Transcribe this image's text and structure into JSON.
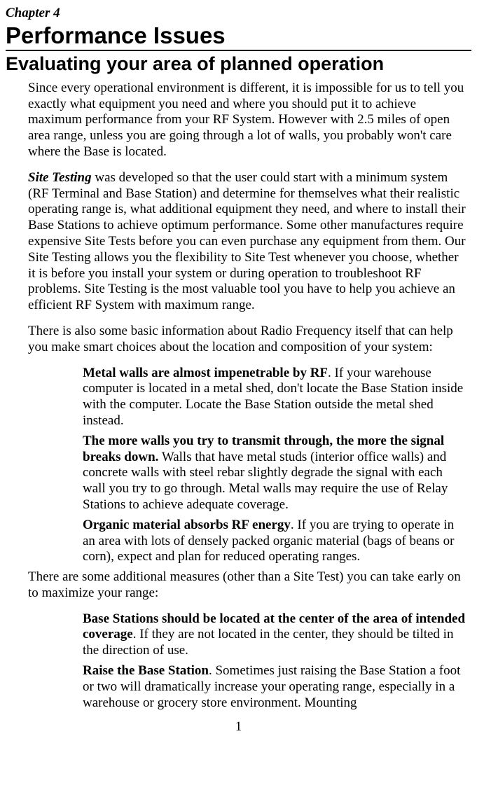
{
  "chapter": {
    "label": "Chapter 4",
    "title": "Performance Issues"
  },
  "section": {
    "title": "Evaluating your area of planned operation"
  },
  "paras": {
    "p1": "Since every operational environment is different, it is impossible for us to tell you exactly what equipment you need and where you should put it to achieve maximum performance from your RF System. However with 2.5 miles of open area range, unless you are going through a lot of walls, you probably won't care where the Base is located.",
    "p2_lead": "Site Testing",
    "p2_rest": " was developed so that the user could start with a minimum system (RF Terminal and Base Station) and determine for themselves what their realistic operating range is, what additional equipment they need, and where to install their Base Stations to achieve optimum performance. Some other manufactures require expensive Site Tests before you can even purchase any equipment from them. Our Site Testing allows you the flexibility to Site Test whenever you choose, whether it is before you install your system or during operation to troubleshoot RF problems. Site Testing is the most valuable tool you have to help you achieve an efficient RF System with maximum range.",
    "p3": "There is also some basic information about Radio Frequency itself that can help you make smart choices about the location and composition of your system:",
    "tip1_lead": "Metal walls are almost impenetrable by RF",
    "tip1_rest": ". If your warehouse computer is located in a metal shed, don't locate the Base Station inside with the computer. Locate the Base Station outside the metal shed instead.",
    "tip2_lead": "The more walls you try to transmit through, the more the signal breaks down.",
    "tip2_rest": "  Walls that have metal studs (interior office walls) and concrete walls with steel rebar slightly degrade the signal with each wall you try to go through. Metal walls may require the use of Relay Stations to achieve adequate coverage.",
    "tip3_lead": "Organic material absorbs RF energy",
    "tip3_rest": ". If you are trying to operate in an area with lots of densely packed organic material (bags of beans or corn), expect and plan for reduced operating ranges.",
    "p4": "There are some additional measures (other than a Site Test) you can take early on to maximize your range:",
    "tip4_lead": "Base Stations should be located at the center of the area of intended coverage",
    "tip4_rest": ". If they are not located in the center, they should be tilted in the direction of use.",
    "tip5_lead": "Raise the Base Station",
    "tip5_rest": ". Sometimes just raising the Base Station a foot or two will dramatically increase your operating range, especially in a warehouse or grocery store environment.  Mounting"
  },
  "page_number": "1"
}
